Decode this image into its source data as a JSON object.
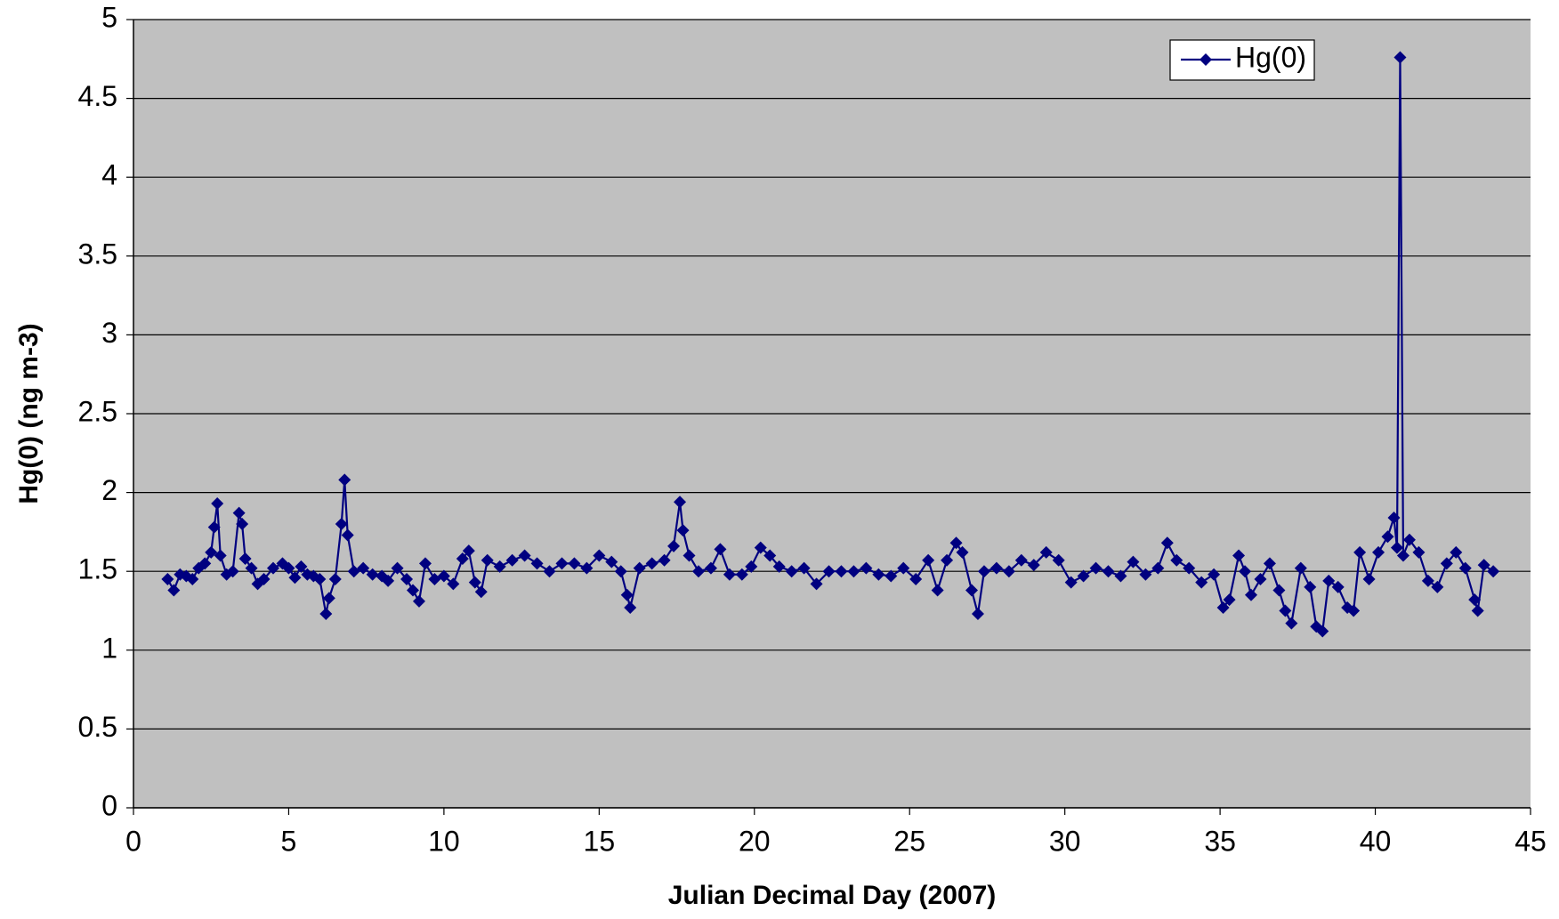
{
  "chart_data": {
    "type": "line",
    "x_label": "Julian Decimal Day (2007)",
    "y_label": "Hg(0) (ng m-3)",
    "xlim": [
      0,
      45
    ],
    "xticks": [
      0,
      5,
      10,
      15,
      20,
      25,
      30,
      35,
      40,
      45
    ],
    "ylim": [
      0,
      5
    ],
    "yticks": [
      0,
      0.5,
      1,
      1.5,
      2,
      2.5,
      3,
      3.5,
      4,
      4.5,
      5
    ],
    "grid": true,
    "legend": "upper right",
    "series": [
      {
        "name": "Hg(0)",
        "color": "#000080",
        "x": [
          1.1,
          1.3,
          1.5,
          1.7,
          1.9,
          2.1,
          2.3,
          2.5,
          2.6,
          2.7,
          2.8,
          3.0,
          3.2,
          3.4,
          3.5,
          3.6,
          3.8,
          4.0,
          4.2,
          4.5,
          4.8,
          5.0,
          5.2,
          5.4,
          5.6,
          5.8,
          6.0,
          6.2,
          6.3,
          6.5,
          6.7,
          6.8,
          6.9,
          7.1,
          7.4,
          7.7,
          8.0,
          8.2,
          8.5,
          8.8,
          9.0,
          9.2,
          9.4,
          9.7,
          10.0,
          10.3,
          10.6,
          10.8,
          11.0,
          11.2,
          11.4,
          11.8,
          12.2,
          12.6,
          13.0,
          13.4,
          13.8,
          14.2,
          14.6,
          15.0,
          15.4,
          15.7,
          15.9,
          16.0,
          16.3,
          16.7,
          17.1,
          17.4,
          17.6,
          17.7,
          17.9,
          18.2,
          18.6,
          18.9,
          19.2,
          19.6,
          19.9,
          20.2,
          20.5,
          20.8,
          21.2,
          21.6,
          22.0,
          22.4,
          22.8,
          23.2,
          23.6,
          24.0,
          24.4,
          24.8,
          25.2,
          25.6,
          25.9,
          26.2,
          26.5,
          26.7,
          27.0,
          27.2,
          27.4,
          27.8,
          28.2,
          28.6,
          29.0,
          29.4,
          29.8,
          30.2,
          30.6,
          31.0,
          31.4,
          31.8,
          32.2,
          32.6,
          33.0,
          33.3,
          33.6,
          34.0,
          34.4,
          34.8,
          35.1,
          35.3,
          35.6,
          35.8,
          36.0,
          36.3,
          36.6,
          36.9,
          37.1,
          37.3,
          37.6,
          37.9,
          38.1,
          38.3,
          38.5,
          38.8,
          39.1,
          39.3,
          39.5,
          39.8,
          40.1,
          40.4,
          40.6,
          40.7,
          40.8,
          40.9,
          41.1,
          41.4,
          41.7,
          42.0,
          42.3,
          42.6,
          42.9,
          43.2,
          43.3,
          43.5,
          43.8
        ],
        "values": [
          1.45,
          1.38,
          1.48,
          1.47,
          1.45,
          1.52,
          1.55,
          1.62,
          1.78,
          1.93,
          1.6,
          1.48,
          1.5,
          1.87,
          1.8,
          1.58,
          1.52,
          1.42,
          1.45,
          1.52,
          1.55,
          1.52,
          1.46,
          1.53,
          1.48,
          1.47,
          1.45,
          1.23,
          1.33,
          1.45,
          1.8,
          2.08,
          1.73,
          1.5,
          1.52,
          1.48,
          1.47,
          1.44,
          1.52,
          1.45,
          1.38,
          1.31,
          1.55,
          1.45,
          1.47,
          1.42,
          1.58,
          1.63,
          1.43,
          1.37,
          1.57,
          1.53,
          1.57,
          1.6,
          1.55,
          1.5,
          1.55,
          1.55,
          1.52,
          1.6,
          1.56,
          1.5,
          1.35,
          1.27,
          1.52,
          1.55,
          1.57,
          1.66,
          1.94,
          1.76,
          1.6,
          1.5,
          1.52,
          1.64,
          1.48,
          1.48,
          1.53,
          1.65,
          1.6,
          1.53,
          1.5,
          1.52,
          1.42,
          1.5,
          1.5,
          1.5,
          1.52,
          1.48,
          1.47,
          1.52,
          1.45,
          1.57,
          1.38,
          1.57,
          1.68,
          1.62,
          1.38,
          1.23,
          1.5,
          1.52,
          1.5,
          1.57,
          1.54,
          1.62,
          1.57,
          1.43,
          1.47,
          1.52,
          1.5,
          1.47,
          1.56,
          1.48,
          1.52,
          1.68,
          1.57,
          1.52,
          1.43,
          1.48,
          1.27,
          1.32,
          1.6,
          1.5,
          1.35,
          1.45,
          1.55,
          1.38,
          1.25,
          1.17,
          1.52,
          1.4,
          1.15,
          1.12,
          1.44,
          1.4,
          1.27,
          1.25,
          1.62,
          1.45,
          1.62,
          1.72,
          1.84,
          1.65,
          4.76,
          1.6,
          1.7,
          1.62,
          1.44,
          1.4,
          1.55,
          1.62,
          1.52,
          1.32,
          1.25,
          1.54,
          1.5
        ]
      }
    ]
  }
}
